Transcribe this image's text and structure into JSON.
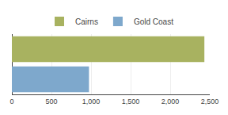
{
  "chart_data": {
    "type": "bar",
    "orientation": "horizontal",
    "categories": [
      "Cairns",
      "Gold Coast"
    ],
    "values": [
      2431.6,
      973.9
    ],
    "colors": [
      "#a8b260",
      "#7ea8cc"
    ],
    "xlim": [
      0,
      2500
    ],
    "xticks": [
      0,
      500,
      {
        "value": 1000,
        "label": "1,000"
      },
      {
        "value": 1500,
        "label": "1,500"
      },
      {
        "value": 2000,
        "label": "2,000"
      },
      {
        "value": 2500,
        "label": "2,500"
      }
    ],
    "grid": true,
    "legend": "top",
    "tick_labels": "x"
  }
}
